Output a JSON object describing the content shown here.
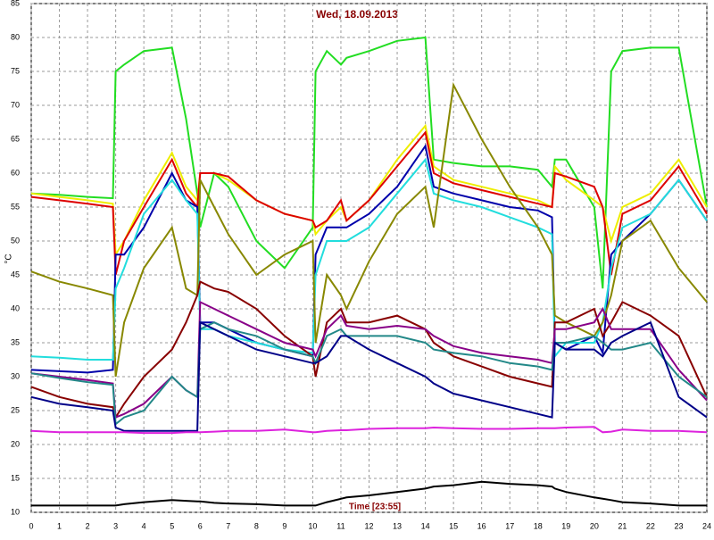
{
  "chart_data": {
    "type": "line",
    "title": "Wed, 18.09.2013",
    "ylabel": "°C",
    "annotation": "Time [23:55]",
    "x": [
      0,
      1,
      2,
      2.9,
      3,
      3.3,
      4,
      5,
      5.5,
      5.9,
      6,
      6.5,
      7,
      8,
      9,
      10,
      10.1,
      10.5,
      11,
      11.2,
      12,
      13,
      14,
      14.3,
      15,
      16,
      17,
      18,
      18.5,
      18.6,
      19,
      20,
      20.3,
      20.6,
      21,
      22,
      23,
      24
    ],
    "xlim": [
      0,
      24
    ],
    "xticks": [
      0,
      1,
      2,
      3,
      4,
      5,
      6,
      7,
      8,
      9,
      10,
      11,
      12,
      13,
      14,
      15,
      16,
      17,
      18,
      19,
      20,
      21,
      22,
      23,
      24
    ],
    "ylim": [
      10,
      85
    ],
    "yticks": [
      10,
      15,
      20,
      25,
      30,
      35,
      40,
      45,
      50,
      55,
      60,
      65,
      70,
      75,
      80,
      85
    ],
    "grid": true,
    "series": [
      {
        "color": "#22dd22",
        "values": [
          57,
          56.8,
          56.5,
          56.3,
          75,
          76,
          78,
          78.5,
          68,
          57,
          52,
          60,
          58,
          50,
          46,
          52,
          75,
          78,
          76,
          77,
          78,
          79.5,
          80,
          62,
          61.5,
          61,
          61,
          60.5,
          58,
          62,
          62,
          55,
          43,
          75,
          78,
          78.5,
          78.5,
          55
        ]
      },
      {
        "color": "#eeee00",
        "values": [
          57,
          56.5,
          56,
          55.5,
          48,
          50,
          56,
          63,
          58,
          56,
          60,
          60,
          59,
          56,
          54,
          53,
          51,
          53,
          55,
          53,
          56,
          62,
          67,
          61,
          59,
          58,
          57,
          56,
          55,
          61,
          59,
          56,
          55,
          50,
          55,
          57,
          62,
          55
        ]
      },
      {
        "color": "#dd0000",
        "values": [
          56.5,
          56,
          55.5,
          55,
          45,
          50,
          55,
          62,
          57,
          55,
          60,
          60,
          59.5,
          56,
          54,
          53,
          52,
          53,
          56,
          53,
          56,
          61,
          66,
          60,
          58.5,
          57.5,
          56.5,
          55.5,
          55,
          60,
          59.5,
          58,
          55,
          45,
          54,
          56,
          61,
          54
        ]
      },
      {
        "color": "#0000aa",
        "values": [
          31,
          30.8,
          30.6,
          31,
          48,
          48,
          52,
          60,
          56,
          55,
          38,
          38,
          37,
          35,
          34,
          33,
          48,
          52,
          52,
          52,
          54,
          58,
          64,
          58,
          57,
          56,
          55,
          54.5,
          53.5,
          35,
          34,
          36,
          33.5,
          48,
          50,
          54,
          59,
          53
        ]
      },
      {
        "color": "#22dddd",
        "values": [
          33,
          32.8,
          32.5,
          32.5,
          43,
          46,
          54,
          59,
          56,
          54,
          37,
          37,
          36,
          35,
          34,
          33.5,
          45,
          50,
          50,
          50,
          52,
          57,
          62,
          57,
          56,
          55,
          53.5,
          52,
          51,
          33,
          35,
          35,
          38,
          46,
          52,
          54,
          59,
          53
        ]
      },
      {
        "color": "#888800",
        "values": [
          45.5,
          44,
          43,
          42,
          30,
          38,
          46,
          52,
          43,
          42,
          59,
          55,
          51,
          45,
          48,
          50,
          35,
          45,
          42,
          40,
          47,
          54,
          58,
          52,
          73,
          65,
          58,
          52,
          48,
          39,
          38,
          36,
          38,
          42,
          50,
          53,
          46,
          41
        ]
      },
      {
        "color": "#880000",
        "values": [
          28.5,
          27,
          26,
          25.5,
          24,
          26,
          30,
          34,
          38,
          42,
          44,
          43,
          42.5,
          40,
          36,
          33,
          30,
          38,
          40,
          38,
          38,
          39,
          37,
          35,
          33,
          31.5,
          30,
          29,
          28.5,
          38,
          38,
          40,
          36,
          38,
          41,
          39,
          36,
          27
        ]
      },
      {
        "color": "#880088",
        "values": [
          30.5,
          30,
          29.5,
          29,
          24,
          24.5,
          26,
          30,
          28,
          27,
          41,
          40,
          39,
          37,
          35,
          34,
          33,
          37,
          39,
          37.5,
          37,
          37.5,
          37,
          36,
          34.5,
          33.5,
          33,
          32.5,
          32,
          37,
          37,
          38,
          40,
          37,
          37,
          37,
          31,
          26.5
        ]
      },
      {
        "color": "#228888",
        "values": [
          30.5,
          29.8,
          29.2,
          28.8,
          23,
          24,
          25,
          30,
          28,
          27,
          37,
          38,
          37,
          36,
          34,
          33,
          32,
          36,
          37,
          36,
          36,
          36,
          35,
          34,
          33.5,
          33,
          32,
          31.5,
          31,
          35,
          35,
          36,
          35,
          34,
          34,
          35,
          30,
          27
        ]
      },
      {
        "color": "#000088",
        "values": [
          27,
          26,
          25.5,
          25,
          22.5,
          22,
          22,
          22,
          22,
          22,
          38,
          37,
          36,
          34,
          33,
          32,
          32,
          33,
          36,
          36,
          34,
          32,
          30,
          29,
          27.5,
          26.5,
          25.5,
          24.5,
          24,
          35,
          34,
          34,
          33,
          35,
          36,
          38,
          27,
          24
        ]
      },
      {
        "color": "#dd22dd",
        "values": [
          22,
          21.8,
          21.8,
          21.8,
          21.8,
          21.8,
          21.7,
          21.7,
          21.8,
          21.8,
          21.8,
          21.9,
          22,
          22,
          22.2,
          21.8,
          21.8,
          22,
          22.1,
          22.1,
          22.3,
          22.4,
          22.4,
          22.5,
          22.4,
          22.3,
          22.3,
          22.4,
          22.4,
          22.4,
          22.5,
          22.6,
          21.8,
          21.9,
          22.2,
          22,
          22,
          21.8
        ]
      },
      {
        "color": "#000000",
        "values": [
          11,
          11,
          11,
          11,
          11,
          11.2,
          11.5,
          11.8,
          11.7,
          11.6,
          11.6,
          11.4,
          11.3,
          11.2,
          11,
          11,
          11,
          11.5,
          12,
          12.2,
          12.5,
          13,
          13.5,
          13.8,
          14,
          14.5,
          14.2,
          14,
          13.8,
          13.5,
          13,
          12.2,
          12,
          11.8,
          11.5,
          11.3,
          11,
          11
        ]
      }
    ]
  }
}
